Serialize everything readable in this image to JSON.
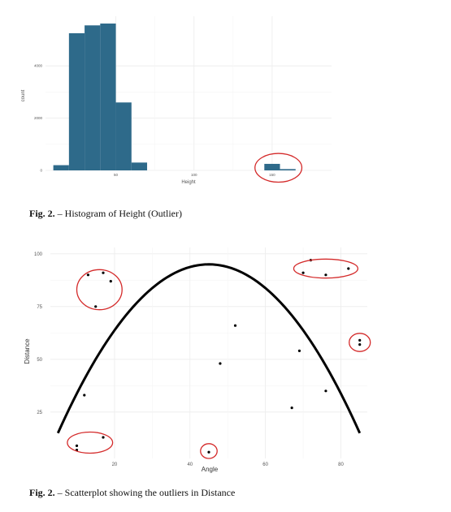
{
  "figure1": {
    "caption_label": "Fig. 2.",
    "caption_text": "– Histogram of Height (Outlier)",
    "chart_data": {
      "type": "bar",
      "title": "",
      "xlabel": "Height",
      "ylabel": "count",
      "x_ticks": [
        50,
        100,
        150
      ],
      "y_ticks": [
        0,
        2000,
        4000
      ],
      "xlim": [
        5,
        188
      ],
      "ylim": [
        0,
        5900
      ],
      "bin_width": 10,
      "bars": [
        {
          "x0": 10,
          "x1": 20,
          "count": 200
        },
        {
          "x0": 20,
          "x1": 30,
          "count": 5250
        },
        {
          "x0": 30,
          "x1": 40,
          "count": 5550
        },
        {
          "x0": 40,
          "x1": 50,
          "count": 5620
        },
        {
          "x0": 50,
          "x1": 60,
          "count": 2600
        },
        {
          "x0": 60,
          "x1": 70,
          "count": 300
        },
        {
          "x0": 145,
          "x1": 155,
          "count": 250
        },
        {
          "x0": 155,
          "x1": 165,
          "count": 50
        }
      ],
      "bar_color": "#2e6a8a",
      "highlight_color": "#d42a2a",
      "highlights": [
        {
          "x0": 139,
          "x1": 169,
          "y0": -450,
          "y1": 650
        }
      ],
      "grid": true
    }
  },
  "figure2": {
    "caption_label": "Fig. 2.",
    "caption_text": "– Scatterplot showing the outliers in Distance",
    "chart_data": {
      "type": "scatter",
      "title": "",
      "xlabel": "Angle",
      "ylabel": "Distance",
      "x_ticks": [
        20,
        40,
        60,
        80
      ],
      "y_ticks": [
        25,
        50,
        75,
        100
      ],
      "xlim": [
        3,
        87
      ],
      "ylim": [
        3,
        103
      ],
      "points": [
        {
          "x": 13,
          "y": 90
        },
        {
          "x": 17,
          "y": 91
        },
        {
          "x": 19,
          "y": 87
        },
        {
          "x": 15,
          "y": 75
        },
        {
          "x": 72,
          "y": 97
        },
        {
          "x": 70,
          "y": 91
        },
        {
          "x": 76,
          "y": 90
        },
        {
          "x": 82,
          "y": 93
        },
        {
          "x": 85,
          "y": 59
        },
        {
          "x": 85,
          "y": 57
        },
        {
          "x": 52,
          "y": 66
        },
        {
          "x": 48,
          "y": 48
        },
        {
          "x": 69,
          "y": 54
        },
        {
          "x": 76,
          "y": 35
        },
        {
          "x": 67,
          "y": 27
        },
        {
          "x": 12,
          "y": 33
        },
        {
          "x": 10,
          "y": 9
        },
        {
          "x": 10,
          "y": 7
        },
        {
          "x": 17,
          "y": 13
        },
        {
          "x": 45,
          "y": 6
        }
      ],
      "curve": {
        "type": "parabola",
        "vertex_x": 45,
        "vertex_y": 95,
        "x_from": 5,
        "x_to": 85,
        "y_at_ends": 15
      },
      "point_color": "#000000",
      "curve_color": "#000000",
      "highlight_color": "#d42a2a",
      "highlights": [
        {
          "cx": 16,
          "cy": 83,
          "rx": 6,
          "ry": 9.5
        },
        {
          "cx": 76,
          "cy": 93,
          "rx": 8.5,
          "ry": 4.5
        },
        {
          "cx": 85,
          "cy": 58,
          "rx": 2.8,
          "ry": 4.3
        },
        {
          "cx": 13.5,
          "cy": 10.5,
          "rx": 6,
          "ry": 5
        },
        {
          "cx": 45,
          "cy": 6.5,
          "rx": 2.2,
          "ry": 3.5
        }
      ],
      "grid": true
    }
  }
}
